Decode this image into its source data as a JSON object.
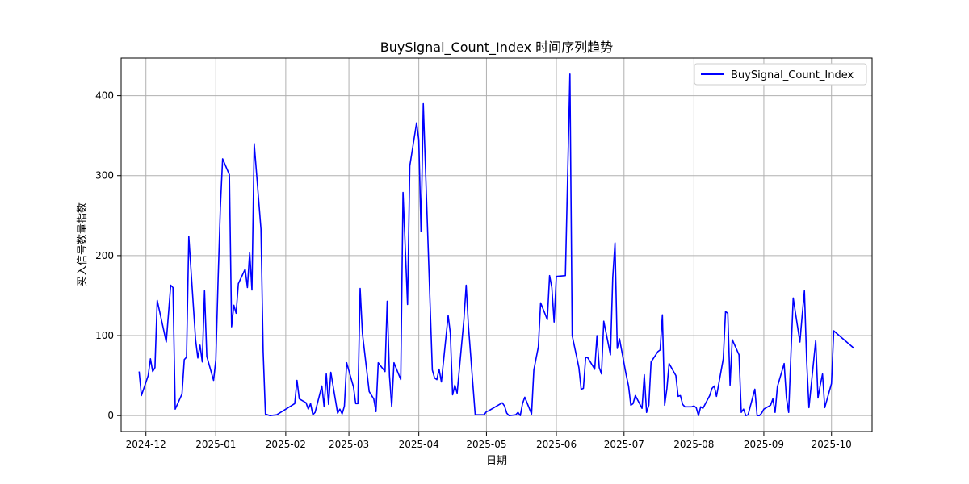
{
  "chart_data": {
    "type": "line",
    "title": "BuySignal_Count_Index 时间序列趋势",
    "xlabel": "日期",
    "ylabel": "买入信号数量指数",
    "x_ticks": [
      "2024-12",
      "2025-01",
      "2025-02",
      "2025-03",
      "2025-04",
      "2025-05",
      "2025-06",
      "2025-07",
      "2025-08",
      "2025-09",
      "2025-10"
    ],
    "y_ticks": [
      0,
      100,
      200,
      300,
      400
    ],
    "xlim": [
      "2024-11-20",
      "2025-10-19"
    ],
    "ylim": [
      -20,
      447
    ],
    "grid": true,
    "legend": "top-right",
    "series": [
      {
        "name": "BuySignal_Count_Index",
        "color": "#0000ff",
        "points": [
          [
            "2024-11-28",
            55
          ],
          [
            "2024-11-29",
            25
          ],
          [
            "2024-12-02",
            50
          ],
          [
            "2024-12-03",
            71
          ],
          [
            "2024-12-04",
            55
          ],
          [
            "2024-12-05",
            60
          ],
          [
            "2024-12-06",
            144
          ],
          [
            "2024-12-09",
            105
          ],
          [
            "2024-12-10",
            92
          ],
          [
            "2024-12-12",
            163
          ],
          [
            "2024-12-13",
            160
          ],
          [
            "2024-12-14",
            8
          ],
          [
            "2024-12-17",
            27
          ],
          [
            "2024-12-18",
            70
          ],
          [
            "2024-12-19",
            73
          ],
          [
            "2024-12-20",
            224
          ],
          [
            "2024-12-23",
            95
          ],
          [
            "2024-12-24",
            72
          ],
          [
            "2024-12-25",
            88
          ],
          [
            "2024-12-26",
            67
          ],
          [
            "2024-12-27",
            156
          ],
          [
            "2024-12-28",
            74
          ],
          [
            "2024-12-31",
            44
          ],
          [
            "2025-01-01",
            70
          ],
          [
            "2025-01-02",
            170
          ],
          [
            "2025-01-03",
            260
          ],
          [
            "2025-01-04",
            321
          ],
          [
            "2025-01-07",
            301
          ],
          [
            "2025-01-08",
            111
          ],
          [
            "2025-01-09",
            138
          ],
          [
            "2025-01-10",
            128
          ],
          [
            "2025-01-11",
            165
          ],
          [
            "2025-01-14",
            183
          ],
          [
            "2025-01-15",
            160
          ],
          [
            "2025-01-16",
            204
          ],
          [
            "2025-01-17",
            157
          ],
          [
            "2025-01-18",
            340
          ],
          [
            "2025-01-21",
            233
          ],
          [
            "2025-01-22",
            80
          ],
          [
            "2025-01-23",
            2
          ],
          [
            "2025-01-25",
            0
          ],
          [
            "2025-01-28",
            1
          ],
          [
            "2025-02-05",
            15
          ],
          [
            "2025-02-06",
            44
          ],
          [
            "2025-02-07",
            21
          ],
          [
            "2025-02-10",
            16
          ],
          [
            "2025-02-11",
            8
          ],
          [
            "2025-02-12",
            15
          ],
          [
            "2025-02-13",
            1
          ],
          [
            "2025-02-14",
            4
          ],
          [
            "2025-02-17",
            37
          ],
          [
            "2025-02-18",
            11
          ],
          [
            "2025-02-19",
            52
          ],
          [
            "2025-02-20",
            14
          ],
          [
            "2025-02-21",
            54
          ],
          [
            "2025-02-24",
            3
          ],
          [
            "2025-02-25",
            8
          ],
          [
            "2025-02-26",
            2
          ],
          [
            "2025-02-27",
            12
          ],
          [
            "2025-02-28",
            66
          ],
          [
            "2025-03-03",
            36
          ],
          [
            "2025-03-04",
            15
          ],
          [
            "2025-03-05",
            15
          ],
          [
            "2025-03-06",
            159
          ],
          [
            "2025-03-07",
            103
          ],
          [
            "2025-03-10",
            30
          ],
          [
            "2025-03-12",
            21
          ],
          [
            "2025-03-13",
            5
          ],
          [
            "2025-03-14",
            66
          ],
          [
            "2025-03-17",
            55
          ],
          [
            "2025-03-18",
            143
          ],
          [
            "2025-03-19",
            50
          ],
          [
            "2025-03-20",
            11
          ],
          [
            "2025-03-21",
            66
          ],
          [
            "2025-03-24",
            45
          ],
          [
            "2025-03-25",
            279
          ],
          [
            "2025-03-27",
            139
          ],
          [
            "2025-03-28",
            312
          ],
          [
            "2025-03-31",
            366
          ],
          [
            "2025-04-01",
            345
          ],
          [
            "2025-04-02",
            230
          ],
          [
            "2025-04-03",
            390
          ],
          [
            "2025-04-07",
            57
          ],
          [
            "2025-04-08",
            47
          ],
          [
            "2025-04-09",
            45
          ],
          [
            "2025-04-10",
            58
          ],
          [
            "2025-04-11",
            42
          ],
          [
            "2025-04-14",
            125
          ],
          [
            "2025-04-15",
            103
          ],
          [
            "2025-04-16",
            26
          ],
          [
            "2025-04-17",
            38
          ],
          [
            "2025-04-18",
            28
          ],
          [
            "2025-04-21",
            120
          ],
          [
            "2025-04-22",
            163
          ],
          [
            "2025-04-23",
            112
          ],
          [
            "2025-04-26",
            1
          ],
          [
            "2025-04-27",
            1
          ],
          [
            "2025-04-30",
            1
          ],
          [
            "2025-05-01",
            5
          ],
          [
            "2025-05-02",
            6
          ],
          [
            "2025-05-08",
            16
          ],
          [
            "2025-05-09",
            12
          ],
          [
            "2025-05-10",
            3
          ],
          [
            "2025-05-11",
            0
          ],
          [
            "2025-05-14",
            1
          ],
          [
            "2025-05-15",
            4
          ],
          [
            "2025-05-16",
            0
          ],
          [
            "2025-05-17",
            15
          ],
          [
            "2025-05-18",
            23
          ],
          [
            "2025-05-21",
            2
          ],
          [
            "2025-05-22",
            57
          ],
          [
            "2025-05-24",
            86
          ],
          [
            "2025-05-25",
            141
          ],
          [
            "2025-05-28",
            120
          ],
          [
            "2025-05-29",
            175
          ],
          [
            "2025-05-30",
            160
          ],
          [
            "2025-05-31",
            117
          ],
          [
            "2025-06-01",
            174
          ],
          [
            "2025-06-05",
            175
          ],
          [
            "2025-06-07",
            427
          ],
          [
            "2025-06-08",
            100
          ],
          [
            "2025-06-11",
            60
          ],
          [
            "2025-06-12",
            33
          ],
          [
            "2025-06-13",
            34
          ],
          [
            "2025-06-14",
            73
          ],
          [
            "2025-06-15",
            72
          ],
          [
            "2025-06-18",
            58
          ],
          [
            "2025-06-19",
            100
          ],
          [
            "2025-06-20",
            60
          ],
          [
            "2025-06-21",
            52
          ],
          [
            "2025-06-22",
            118
          ],
          [
            "2025-06-25",
            76
          ],
          [
            "2025-06-26",
            172
          ],
          [
            "2025-06-27",
            216
          ],
          [
            "2025-06-28",
            84
          ],
          [
            "2025-06-29",
            96
          ],
          [
            "2025-07-02",
            50
          ],
          [
            "2025-07-03",
            37
          ],
          [
            "2025-07-04",
            13
          ],
          [
            "2025-07-05",
            15
          ],
          [
            "2025-07-06",
            25
          ],
          [
            "2025-07-09",
            9
          ],
          [
            "2025-07-10",
            51
          ],
          [
            "2025-07-11",
            4
          ],
          [
            "2025-07-12",
            13
          ],
          [
            "2025-07-13",
            67
          ],
          [
            "2025-07-16",
            80
          ],
          [
            "2025-07-17",
            82
          ],
          [
            "2025-07-18",
            126
          ],
          [
            "2025-07-19",
            13
          ],
          [
            "2025-07-20",
            34
          ],
          [
            "2025-07-21",
            65
          ],
          [
            "2025-07-24",
            50
          ],
          [
            "2025-07-25",
            24
          ],
          [
            "2025-07-26",
            25
          ],
          [
            "2025-07-27",
            14
          ],
          [
            "2025-07-28",
            11
          ],
          [
            "2025-07-31",
            11
          ],
          [
            "2025-08-01",
            12
          ],
          [
            "2025-08-02",
            10
          ],
          [
            "2025-08-03",
            0
          ],
          [
            "2025-08-04",
            11
          ],
          [
            "2025-08-05",
            9
          ],
          [
            "2025-08-08",
            25
          ],
          [
            "2025-08-09",
            34
          ],
          [
            "2025-08-10",
            37
          ],
          [
            "2025-08-11",
            24
          ],
          [
            "2025-08-14",
            71
          ],
          [
            "2025-08-15",
            130
          ],
          [
            "2025-08-16",
            128
          ],
          [
            "2025-08-17",
            38
          ],
          [
            "2025-08-18",
            95
          ],
          [
            "2025-08-21",
            76
          ],
          [
            "2025-08-22",
            4
          ],
          [
            "2025-08-23",
            8
          ],
          [
            "2025-08-24",
            0
          ],
          [
            "2025-08-25",
            1
          ],
          [
            "2025-08-28",
            33
          ],
          [
            "2025-08-29",
            0
          ],
          [
            "2025-08-30",
            0
          ],
          [
            "2025-08-31",
            3
          ],
          [
            "2025-09-01",
            8
          ],
          [
            "2025-09-04",
            13
          ],
          [
            "2025-09-05",
            21
          ],
          [
            "2025-09-06",
            4
          ],
          [
            "2025-09-07",
            36
          ],
          [
            "2025-09-10",
            65
          ],
          [
            "2025-09-11",
            22
          ],
          [
            "2025-09-12",
            4
          ],
          [
            "2025-09-13",
            77
          ],
          [
            "2025-09-14",
            147
          ],
          [
            "2025-09-17",
            92
          ],
          [
            "2025-09-18",
            125
          ],
          [
            "2025-09-19",
            156
          ],
          [
            "2025-09-20",
            68
          ],
          [
            "2025-09-21",
            10
          ],
          [
            "2025-09-24",
            94
          ],
          [
            "2025-09-25",
            22
          ],
          [
            "2025-09-26",
            38
          ],
          [
            "2025-09-27",
            52
          ],
          [
            "2025-09-28",
            10
          ],
          [
            "2025-10-01",
            40
          ],
          [
            "2025-10-02",
            106
          ],
          [
            "2025-10-11",
            84
          ]
        ]
      }
    ]
  }
}
